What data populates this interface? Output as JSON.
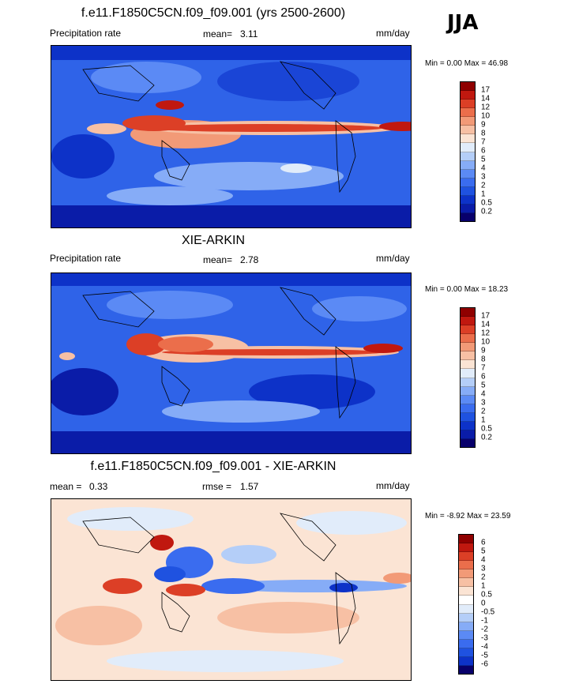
{
  "season": "JJA",
  "units": "mm/day",
  "panels": [
    {
      "title": "f.e11.F1850C5CN.f09_f09.001 (yrs 2500-2600)",
      "left_label": "Precipitation rate",
      "stat_label": "mean=",
      "stat_value": "3.11",
      "units": "mm/day",
      "minmax": "Min =   0.00 Max =  46.98",
      "legend": [
        "17",
        "14",
        "12",
        "10",
        "9",
        "8",
        "7",
        "6",
        "5",
        "4",
        "3",
        "2",
        "1",
        "0.5",
        "0.2"
      ]
    },
    {
      "title": "XIE-ARKIN",
      "left_label": "Precipitation rate",
      "stat_label": "mean=",
      "stat_value": "2.78",
      "units": "mm/day",
      "minmax": "Min =   0.00 Max =  18.23",
      "legend": [
        "17",
        "14",
        "12",
        "10",
        "9",
        "8",
        "7",
        "6",
        "5",
        "4",
        "3",
        "2",
        "1",
        "0.5",
        "0.2"
      ]
    },
    {
      "title": "f.e11.F1850C5CN.f09_f09.001 - XIE-ARKIN",
      "left_label": "mean =",
      "left_value": "0.33",
      "stat_label": "rmse =",
      "stat_value": "1.57",
      "units": "mm/day",
      "minmax": "Min =  -8.92 Max =  23.59",
      "legend": [
        "6",
        "5",
        "4",
        "3",
        "2",
        "1",
        "0.5",
        "0",
        "-0.5",
        "-1",
        "-2",
        "-3",
        "-4",
        "-5",
        "-6"
      ]
    }
  ],
  "colors": {
    "precip_scale": [
      "#08006b",
      "#0a1ca8",
      "#0d32c8",
      "#1f52e0",
      "#3a6cef",
      "#5b8af5",
      "#86acf7",
      "#b4cef8",
      "#e1ecfa",
      "#fbe4d4",
      "#f7c0a4",
      "#f29a77",
      "#eb6e4b",
      "#dc3f26",
      "#c0180f",
      "#8f0000"
    ],
    "diff_scale": [
      "#08006b",
      "#0a1ca8",
      "#0d32c8",
      "#1f52e0",
      "#3a6cef",
      "#5b8af5",
      "#86acf7",
      "#b4cef8",
      "#e1ecfa",
      "#fbe4d4",
      "#f7c0a4",
      "#f29a77",
      "#eb6e4b",
      "#dc3f26",
      "#c0180f",
      "#8f0000"
    ]
  }
}
